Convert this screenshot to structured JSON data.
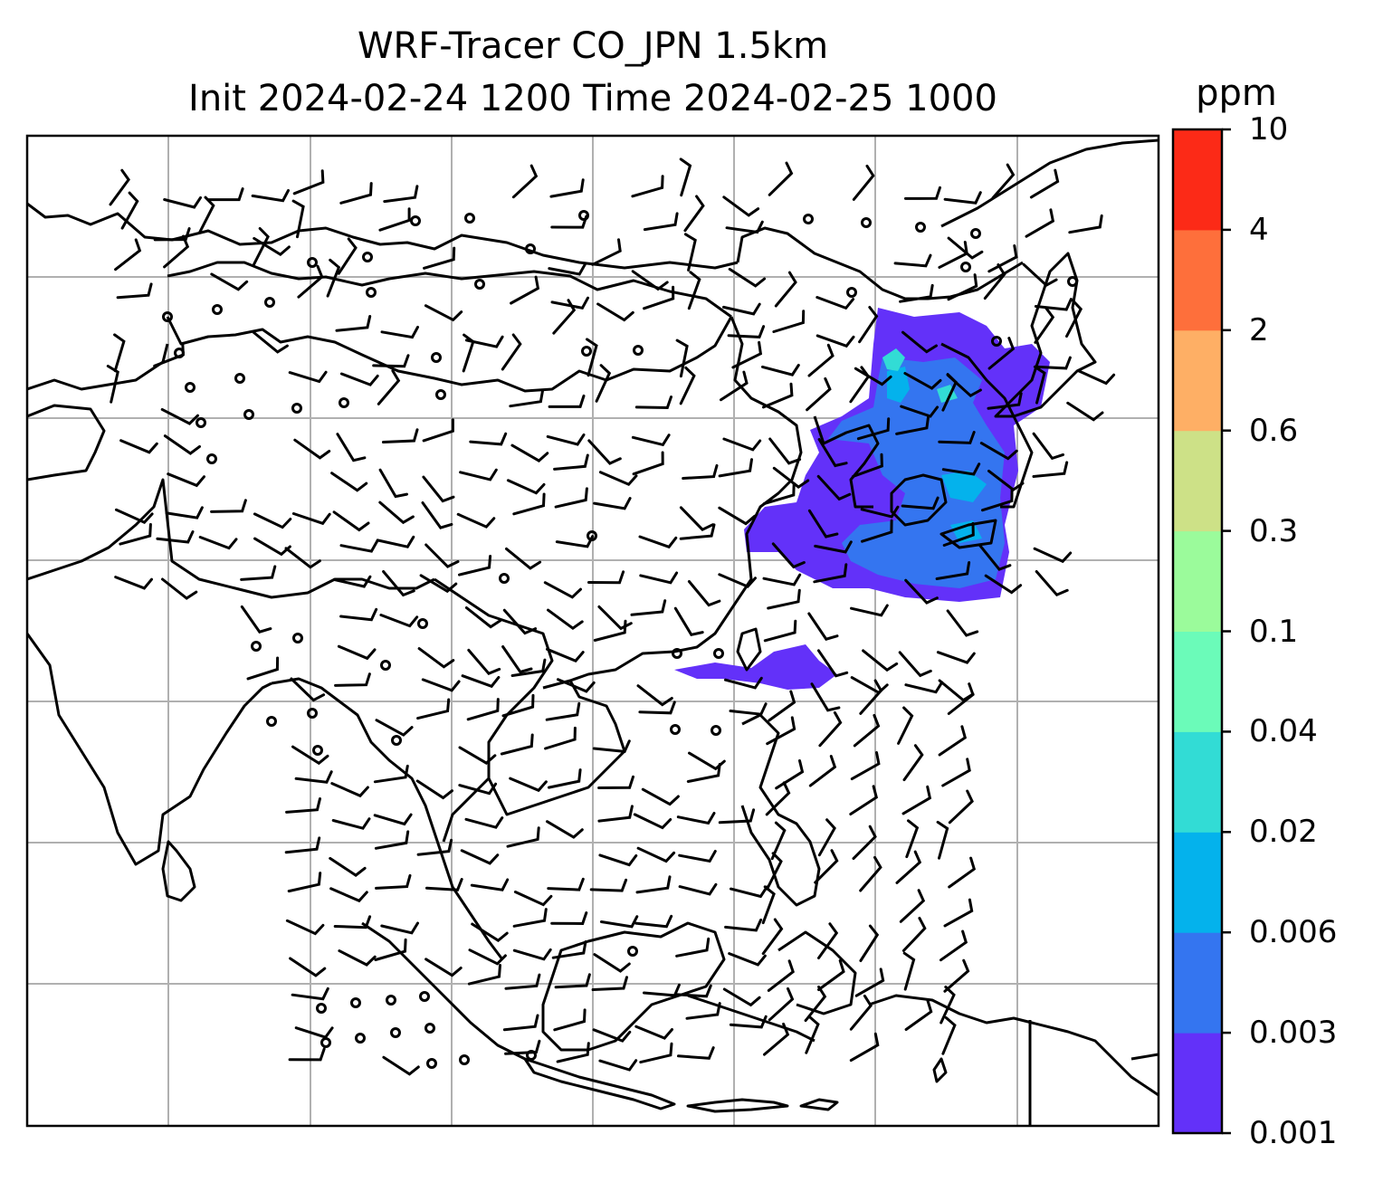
{
  "title": {
    "line1": "WRF-Tracer CO_JPN 1.5km",
    "line2": "Init 2024-02-24 1200 Time 2024-02-25 1000"
  },
  "colorbar": {
    "unit": "ppm",
    "levels": [
      "0.001",
      "0.003",
      "0.006",
      "0.02",
      "0.04",
      "0.1",
      "0.3",
      "0.6",
      "2",
      "4",
      "10"
    ],
    "colors": [
      "#6331f9",
      "#3475f0",
      "#04b2ec",
      "#32dcd5",
      "#6bfbb9",
      "#9bfb9b",
      "#cde187",
      "#feaf65",
      "#fe6f3b",
      "#fc2a17"
    ]
  },
  "map": {
    "region": "East / Southeast Asia",
    "gridlines": true,
    "wind_barbs": true,
    "tracer_plume": "CO concentration over China, Korea and Japan with a secondary patch south of Taiwan"
  }
}
